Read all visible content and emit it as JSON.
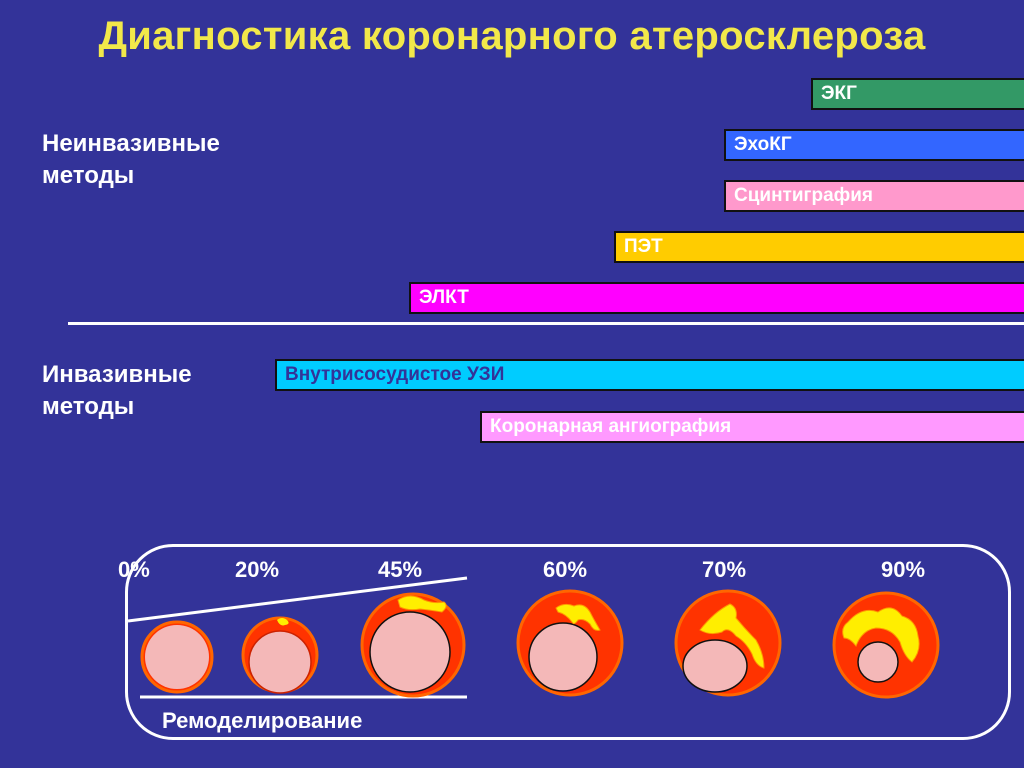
{
  "title": "Диагностика коронарного атеросклероза",
  "groups": {
    "noninvasive": [
      "Неинвазивные",
      "методы"
    ],
    "invasive": [
      "Инвазивные",
      "методы"
    ]
  },
  "bars": [
    {
      "label": "ЭКГ",
      "color": "#339966",
      "text_color": "#ffffff"
    },
    {
      "label": "ЭхоКГ",
      "color": "#3366ff",
      "text_color": "#ffffff"
    },
    {
      "label": "Сцинтиграфия",
      "color": "#ff99cc",
      "text_color": "#ffffff"
    },
    {
      "label": "ПЭТ",
      "color": "#ffcc00",
      "text_color": "#ffffff"
    },
    {
      "label": "ЭЛКТ",
      "color": "#ff00ff",
      "text_color": "#ffffff"
    },
    {
      "label": "Внутрисосудистое УЗИ",
      "color": "#00ccff",
      "text_color": "#333399"
    },
    {
      "label": "Коронарная ангиография",
      "color": "#ff99ff",
      "text_color": "#ffffff"
    }
  ],
  "stenosis": {
    "percents": [
      "0%",
      "20%",
      "45%",
      "60%",
      "70%",
      "90%"
    ],
    "remodeling_label": "Ремоделирование"
  },
  "colors": {
    "background": "#333399",
    "title": "#f2e84a",
    "lumen": "#f4b8b8",
    "vessel_wall": "#ff3300",
    "plaque": "#ffee00",
    "outline": "#ff6600"
  }
}
